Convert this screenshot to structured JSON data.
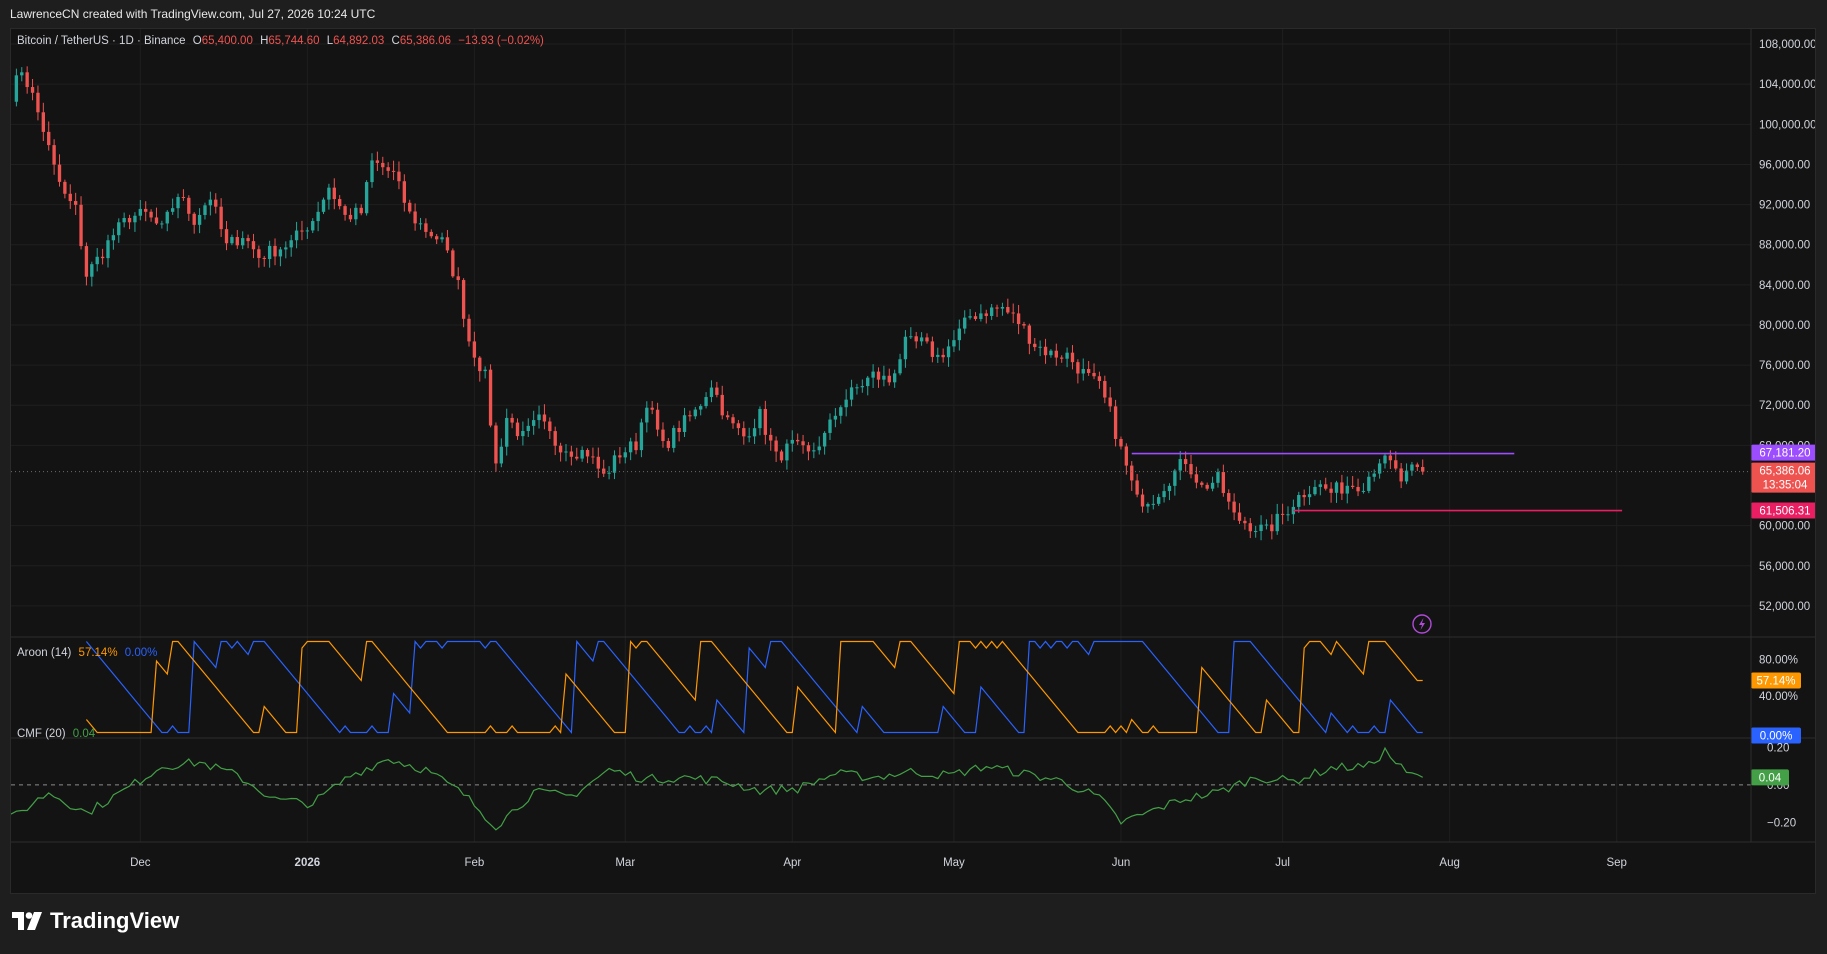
{
  "header": {
    "credit": "LawrenceCN created with TradingView.com, Jul 27, 2026 10:24 UTC"
  },
  "legend": {
    "symbol": "Bitcoin / TetherUS · 1D · Binance",
    "o_label": "O",
    "o_value": "65,400.00",
    "h_label": "H",
    "h_value": "65,744.60",
    "l_label": "L",
    "l_value": "64,892.03",
    "c_label": "C",
    "c_value": "65,386.06",
    "change": "−13.93 (−0.02%)",
    "aroon_name": "Aroon (14)",
    "aroon_up": "57.14%",
    "aroon_down": "0.00%",
    "cmf_name": "CMF (20)",
    "cmf_value": "0.04"
  },
  "colors": {
    "up": "#26a69a",
    "down": "#ef5350",
    "aroon_up": "#ff9800",
    "aroon_down": "#2962ff",
    "cmf": "#43a047",
    "resistance": "#9c4dff",
    "support": "#e91e63",
    "background": "#131313"
  },
  "footer": {
    "brand": "TradingView"
  },
  "chart_data": [
    {
      "type": "candlestick",
      "title": "Bitcoin / TetherUS · 1D · Binance",
      "y_ticks": [
        "108,000.00",
        "104,000.00",
        "100,000.00",
        "96,000.00",
        "92,000.00",
        "88,000.00",
        "84,000.00",
        "80,000.00",
        "76,000.00",
        "72,000.00",
        "68,000.00",
        "60,000.00",
        "56,000.00",
        "52,000.00"
      ],
      "y_tick_values": [
        108000,
        104000,
        100000,
        96000,
        92000,
        88000,
        84000,
        80000,
        76000,
        72000,
        68000,
        60000,
        56000,
        52000
      ],
      "ylim": [
        49000,
        109500
      ],
      "x_ticks": [
        "Dec",
        "2026",
        "Feb",
        "Mar",
        "Apr",
        "May",
        "Jun",
        "Jul",
        "Aug",
        "Sep"
      ],
      "x_tick_dates": [
        "2025-12-01",
        "2026-01-01",
        "2026-02-01",
        "2026-03-01",
        "2026-04-01",
        "2026-05-01",
        "2026-06-01",
        "2026-07-01",
        "2026-08-01",
        "2026-09-01"
      ],
      "x_start": "2025-11-07",
      "x_end": "2026-09-25",
      "close_path": [
        [
          "2025-11-07",
          103000
        ],
        [
          "2025-11-09",
          105500
        ],
        [
          "2025-11-11",
          102800
        ],
        [
          "2025-11-13",
          99500
        ],
        [
          "2025-11-15",
          95600
        ],
        [
          "2025-11-17",
          92800
        ],
        [
          "2025-11-19",
          91500
        ],
        [
          "2025-11-21",
          85000
        ],
        [
          "2025-11-23",
          86500
        ],
        [
          "2025-11-26",
          89000
        ],
        [
          "2025-11-29",
          90800
        ],
        [
          "2025-12-02",
          91000
        ],
        [
          "2025-12-05",
          89500
        ],
        [
          "2025-12-08",
          93000
        ],
        [
          "2025-12-11",
          90500
        ],
        [
          "2025-12-14",
          92800
        ],
        [
          "2025-12-17",
          87800
        ],
        [
          "2025-12-20",
          89000
        ],
        [
          "2025-12-23",
          86800
        ],
        [
          "2025-12-26",
          87500
        ],
        [
          "2025-12-29",
          88200
        ],
        [
          "2026-01-02",
          90500
        ],
        [
          "2026-01-05",
          93800
        ],
        [
          "2026-01-08",
          90800
        ],
        [
          "2026-01-11",
          91200
        ],
        [
          "2026-01-13",
          96200
        ],
        [
          "2026-01-15",
          95700
        ],
        [
          "2026-01-17",
          95000
        ],
        [
          "2026-01-20",
          91000
        ],
        [
          "2026-01-23",
          89500
        ],
        [
          "2026-01-26",
          88300
        ],
        [
          "2026-01-29",
          84000
        ],
        [
          "2026-01-31",
          78500
        ],
        [
          "2026-02-03",
          74800
        ],
        [
          "2026-02-05",
          66000
        ],
        [
          "2026-02-07",
          70800
        ],
        [
          "2026-02-10",
          68800
        ],
        [
          "2026-02-13",
          70500
        ],
        [
          "2026-02-16",
          68300
        ],
        [
          "2026-02-19",
          67500
        ],
        [
          "2026-02-22",
          67300
        ],
        [
          "2026-02-25",
          64900
        ],
        [
          "2026-02-28",
          67200
        ],
        [
          "2026-03-03",
          68100
        ],
        [
          "2026-03-05",
          72500
        ],
        [
          "2026-03-08",
          67800
        ],
        [
          "2026-03-11",
          69800
        ],
        [
          "2026-03-14",
          71300
        ],
        [
          "2026-03-17",
          74200
        ],
        [
          "2026-03-20",
          70400
        ],
        [
          "2026-03-23",
          68900
        ],
        [
          "2026-03-26",
          71000
        ],
        [
          "2026-03-29",
          66800
        ],
        [
          "2026-04-01",
          68000
        ],
        [
          "2026-04-04",
          67000
        ],
        [
          "2026-04-07",
          68900
        ],
        [
          "2026-04-10",
          72200
        ],
        [
          "2026-04-13",
          73700
        ],
        [
          "2026-04-16",
          75000
        ],
        [
          "2026-04-19",
          74400
        ],
        [
          "2026-04-22",
          78100
        ],
        [
          "2026-04-25",
          78200
        ],
        [
          "2026-04-28",
          76800
        ],
        [
          "2026-05-01",
          78400
        ],
        [
          "2026-05-04",
          80900
        ],
        [
          "2026-05-07",
          81400
        ],
        [
          "2026-05-10",
          81700
        ],
        [
          "2026-05-13",
          80300
        ],
        [
          "2026-05-16",
          78100
        ],
        [
          "2026-05-19",
          77100
        ],
        [
          "2026-05-22",
          77000
        ],
        [
          "2026-05-25",
          75200
        ],
        [
          "2026-05-28",
          73800
        ],
        [
          "2026-05-30",
          71200
        ],
        [
          "2026-06-01",
          67500
        ],
        [
          "2026-06-04",
          62500
        ],
        [
          "2026-06-07",
          62800
        ],
        [
          "2026-06-10",
          64700
        ],
        [
          "2026-06-13",
          66600
        ],
        [
          "2026-06-16",
          63800
        ],
        [
          "2026-06-19",
          64600
        ],
        [
          "2026-06-22",
          60900
        ],
        [
          "2026-06-25",
          60100
        ],
        [
          "2026-06-28",
          59400
        ],
        [
          "2026-07-01",
          61100
        ],
        [
          "2026-07-04",
          62900
        ],
        [
          "2026-07-07",
          64200
        ],
        [
          "2026-07-10",
          63300
        ],
        [
          "2026-07-13",
          64100
        ],
        [
          "2026-07-16",
          64200
        ],
        [
          "2026-07-19",
          66600
        ],
        [
          "2026-07-21",
          66100
        ],
        [
          "2026-07-23",
          64500
        ],
        [
          "2026-07-25",
          65400
        ],
        [
          "2026-07-27",
          65386
        ]
      ],
      "horizontal_lines": [
        {
          "value": 67181.2,
          "label": "67,181.20",
          "from": "2026-06-03",
          "to": "2026-08-13",
          "color": "#9c4dff"
        },
        {
          "value": 61506.31,
          "label": "61,506.31",
          "from": "2026-07-03",
          "to": "2026-09-02",
          "color": "#e91e63"
        }
      ],
      "last_price": {
        "value": 65386.06,
        "label": "65,386.06",
        "countdown": "13:35:04"
      }
    },
    {
      "type": "line",
      "title": "Aroon (14)",
      "y_ticks": [
        "80.00%",
        "40.00%"
      ],
      "y_tick_values": [
        80,
        40
      ],
      "ylim": [
        -5,
        105
      ],
      "series": [
        {
          "name": "Aroon Up",
          "last": 57.14
        },
        {
          "name": "Aroon Down",
          "last": 0.0
        }
      ]
    },
    {
      "type": "line",
      "title": "CMF (20)",
      "y_ticks": [
        "0.20",
        "0.00",
        "−0.20"
      ],
      "y_tick_values": [
        0.2,
        0.0,
        -0.2
      ],
      "ylim": [
        -0.3,
        0.25
      ],
      "series": [
        {
          "name": "CMF",
          "last": 0.04
        }
      ],
      "cmf_path": [
        [
          "2025-11-07",
          -0.18
        ],
        [
          "2025-11-14",
          -0.04
        ],
        [
          "2025-11-21",
          -0.15
        ],
        [
          "2025-11-28",
          -0.03
        ],
        [
          "2025-12-05",
          0.1
        ],
        [
          "2025-12-12",
          0.12
        ],
        [
          "2025-12-19",
          0.05
        ],
        [
          "2025-12-26",
          -0.08
        ],
        [
          "2026-01-02",
          -0.1
        ],
        [
          "2026-01-09",
          0.05
        ],
        [
          "2026-01-16",
          0.14
        ],
        [
          "2026-01-23",
          0.08
        ],
        [
          "2026-01-30",
          -0.05
        ],
        [
          "2026-02-05",
          -0.22
        ],
        [
          "2026-02-12",
          -0.04
        ],
        [
          "2026-02-19",
          -0.06
        ],
        [
          "2026-02-26",
          0.08
        ],
        [
          "2026-03-05",
          0.03
        ],
        [
          "2026-03-12",
          0.04
        ],
        [
          "2026-03-19",
          0.02
        ],
        [
          "2026-03-26",
          -0.03
        ],
        [
          "2026-04-02",
          -0.02
        ],
        [
          "2026-04-09",
          0.06
        ],
        [
          "2026-04-16",
          0.04
        ],
        [
          "2026-04-23",
          0.07
        ],
        [
          "2026-04-30",
          0.05
        ],
        [
          "2026-05-07",
          0.1
        ],
        [
          "2026-05-14",
          0.06
        ],
        [
          "2026-05-21",
          0.02
        ],
        [
          "2026-05-28",
          -0.07
        ],
        [
          "2026-06-01",
          -0.2
        ],
        [
          "2026-06-05",
          -0.16
        ],
        [
          "2026-06-12",
          -0.08
        ],
        [
          "2026-06-19",
          -0.04
        ],
        [
          "2026-06-26",
          0.04
        ],
        [
          "2026-07-03",
          0.02
        ],
        [
          "2026-07-10",
          0.09
        ],
        [
          "2026-07-17",
          0.1
        ],
        [
          "2026-07-20",
          0.18
        ],
        [
          "2026-07-24",
          0.06
        ],
        [
          "2026-07-27",
          0.04
        ]
      ]
    }
  ]
}
